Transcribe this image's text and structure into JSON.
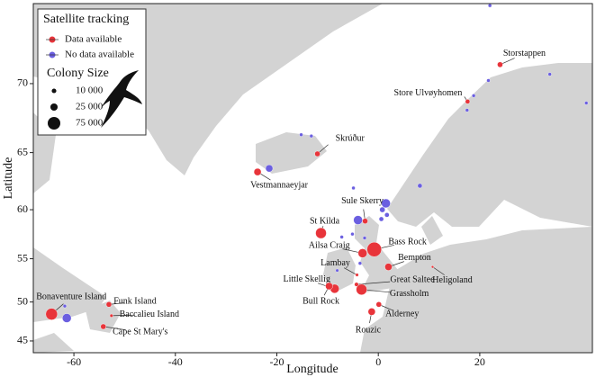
{
  "chart_data": {
    "type": "scatter",
    "x_label": "Longitude",
    "y_label": "Latitude",
    "xlim": [
      -68,
      42.2
    ],
    "ylim": [
      43.4,
      74.6
    ],
    "projection": "mercator",
    "xticks": [
      -60,
      -40,
      -20,
      0,
      20
    ],
    "yticks": [
      45,
      50,
      55,
      60,
      65,
      70
    ],
    "legend": {
      "title": "Satellite tracking",
      "position": "upper left"
    },
    "size_legend": {
      "title": "Colony Size",
      "values": [
        {
          "value": 10000,
          "label": "10 000"
        },
        {
          "value": 25000,
          "label": "25 000"
        },
        {
          "value": 75000,
          "label": "75 000"
        }
      ]
    },
    "series": [
      {
        "name": "Data available",
        "color": "#e8343a",
        "labels": [
          "Storstappen",
          "Store Ulvøyhomen",
          "Skrúður",
          "Vestmannaeyjar",
          "St Kilda",
          "Sule Skerry",
          "Bass Rock",
          "Ailsa Craig",
          "Bempton",
          "Heligoland",
          "Lambay",
          "Great Saltee",
          "Little Skellig",
          "Grassholm",
          "Bull Rock",
          "Alderney",
          "Rouzic",
          "Funk Island",
          "Bonaventure Island",
          "Baccalieu Island",
          "Cape St Mary's"
        ],
        "x": [
          24.0,
          17.6,
          -12.0,
          -23.8,
          -11.3,
          -2.6,
          -0.8,
          -3.1,
          2.0,
          10.7,
          -4.2,
          -4.3,
          -8.6,
          -3.3,
          -9.7,
          0.1,
          -1.3,
          -53.1,
          -64.4,
          -52.6,
          -54.2
        ],
        "y": [
          71.2,
          68.8,
          64.9,
          63.4,
          57.7,
          58.9,
          56.0,
          55.6,
          54.1,
          54.1,
          53.2,
          52.1,
          51.6,
          51.5,
          51.9,
          49.7,
          48.8,
          49.7,
          48.5,
          48.3,
          46.9
        ],
        "size": [
          14000,
          10000,
          14000,
          25000,
          55000,
          14000,
          100000,
          38000,
          25000,
          3000,
          5000,
          8000,
          38000,
          55000,
          25000,
          14000,
          25000,
          14000,
          65000,
          5000,
          14000
        ]
      },
      {
        "name": "No data available",
        "color": "#6b5fe0",
        "x": [
          22.0,
          21.7,
          18.8,
          17.5,
          33.8,
          41.0,
          -15.2,
          -13.2,
          -21.5,
          8.2,
          -4.9,
          1.5,
          0.8,
          1.7,
          0.6,
          -4.0,
          -5.1,
          -7.2,
          -2.7,
          -8.1,
          -3.6,
          -61.8,
          -61.4
        ],
        "y": [
          74.5,
          70.2,
          69.2,
          68.2,
          70.6,
          68.7,
          66.4,
          66.3,
          63.7,
          62.2,
          62.0,
          60.6,
          60.0,
          59.5,
          59.1,
          59.0,
          57.6,
          57.3,
          57.2,
          53.7,
          54.5,
          49.5,
          48.0
        ],
        "size": [
          6000,
          6000,
          6000,
          6000,
          6000,
          6000,
          6000,
          6000,
          25000,
          10000,
          6000,
          38000,
          14000,
          10000,
          10000,
          38000,
          6000,
          6000,
          6000,
          5000,
          6000,
          6000,
          38000
        ]
      }
    ]
  }
}
